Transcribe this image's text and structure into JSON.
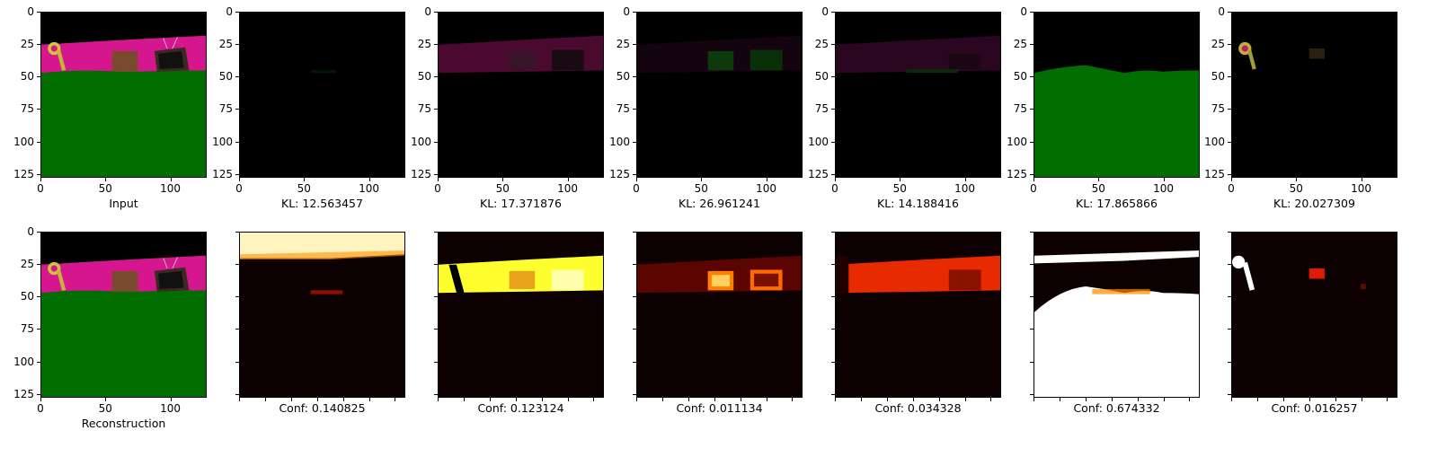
{
  "axis": {
    "y_ticks": [
      "0",
      "25",
      "50",
      "75",
      "100",
      "125"
    ],
    "x_ticks": [
      "0",
      "50",
      "100"
    ]
  },
  "top_row": {
    "captions": [
      "Input",
      "KL: 12.563457",
      "KL: 17.371876",
      "KL: 26.961241",
      "KL: 14.188416",
      "KL: 17.865866",
      "KL: 20.027309"
    ]
  },
  "bottom_row": {
    "captions": [
      "Reconstruction",
      "Conf: 0.140825",
      "Conf: 0.123124",
      "Conf: 0.011134",
      "Conf: 0.034328",
      "Conf: 0.674332",
      "Conf: 0.016257"
    ]
  },
  "colors": {
    "scene_pink": "#d6168e",
    "scene_green": "#006e00",
    "scene_black": "#000000",
    "heat_dark": "#0d0000",
    "heat_red": "#cc1500",
    "heat_yellow": "#ffff30",
    "heat_white": "#ffffff"
  }
}
